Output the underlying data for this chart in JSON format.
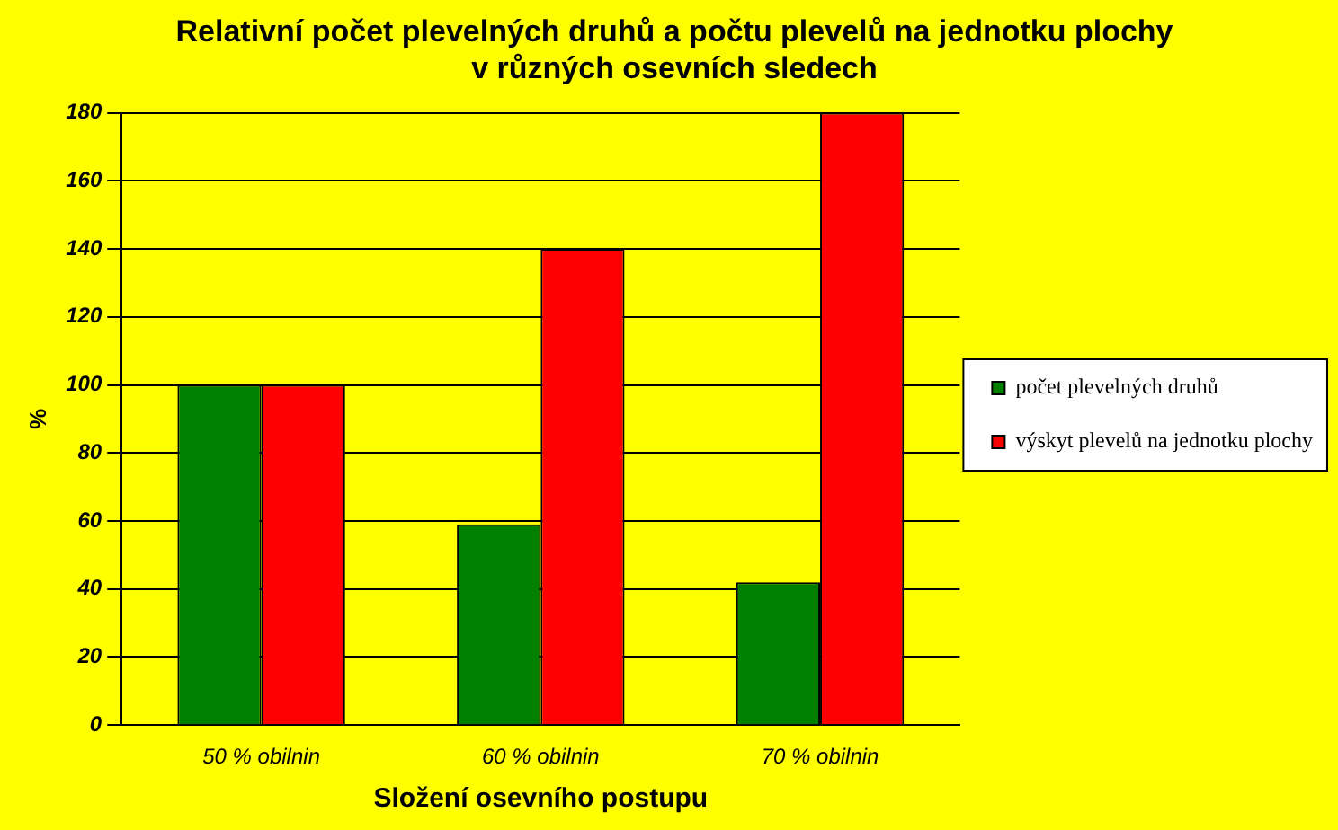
{
  "chart_data": {
    "type": "bar",
    "title": "Relativní počet plevelných druhů a počtu plevelů na jednotku plochy\nv různých osevních sledech",
    "xlabel": "Složení osevního postupu",
    "ylabel": "%",
    "categories": [
      "50 % obilnin",
      "60 % obilnin",
      "70 % obilnin"
    ],
    "series": [
      {
        "name": "počet plevelných druhů",
        "color": "#008000",
        "values": [
          100,
          59,
          42
        ]
      },
      {
        "name": "výskyt plevelů na jednotku plochy",
        "color": "#ff0000",
        "values": [
          100,
          140,
          180
        ]
      }
    ],
    "ylim": [
      0,
      180
    ],
    "yticks": [
      0,
      20,
      40,
      60,
      80,
      100,
      120,
      140,
      160,
      180
    ],
    "grid": "y",
    "legend": "right"
  }
}
